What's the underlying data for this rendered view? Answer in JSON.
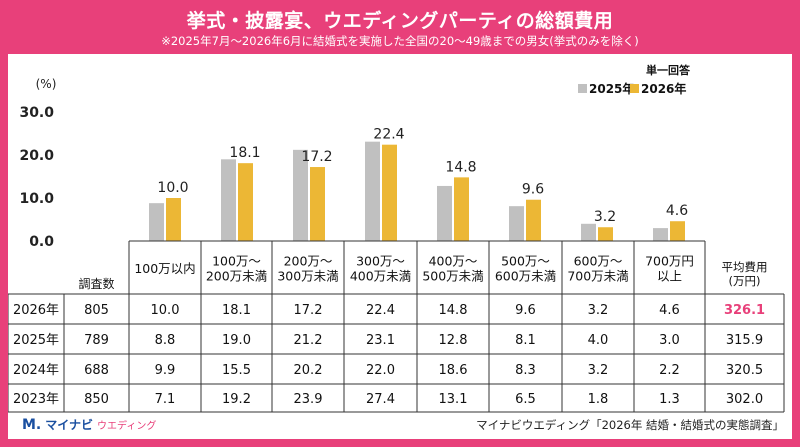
{
  "header": {
    "title": "挙式・披露宴、ウエディングパーティの総額費用",
    "subtitle": "※2025年7月～2026年6月に結婚式を実施した全国の20～49歳までの男女(挙式のみを除く)"
  },
  "colors": {
    "series_2025": "#c0c0c0",
    "series_2026": "#ecb735",
    "highlight": "#e8407a",
    "accent": "#e8407a"
  },
  "chart_data": {
    "type": "bar",
    "yunit": "(%)",
    "ylim": [
      0,
      30
    ],
    "yticks": [
      "0.0",
      "10.0",
      "20.0",
      "30.0"
    ],
    "answer_type": "単一回答",
    "categories": [
      "100万以内",
      "100万～\n200万未満",
      "200万～\n300万未満",
      "300万～\n400万未満",
      "400万～\n500万未満",
      "500万～\n600万未満",
      "600万～\n700万未満",
      "700万円\n以上"
    ],
    "series": [
      {
        "name": "2025年",
        "values": [
          8.8,
          19.0,
          21.2,
          23.1,
          12.8,
          8.1,
          4.0,
          3.0
        ]
      },
      {
        "name": "2026年",
        "values": [
          10.0,
          18.1,
          17.2,
          22.4,
          14.8,
          9.6,
          3.2,
          4.6
        ]
      }
    ],
    "data_labels": [
      "10.0",
      "18.1",
      "17.2",
      "22.4",
      "14.8",
      "9.6",
      "3.2",
      "4.6"
    ],
    "grid": false,
    "legend": "top-right"
  },
  "table": {
    "count_header": "調査数",
    "avg_header": "平均費用\n(万円)",
    "rows": [
      {
        "year": "2026年",
        "count": "805",
        "values": [
          "10.0",
          "18.1",
          "17.2",
          "22.4",
          "14.8",
          "9.6",
          "3.2",
          "4.6"
        ],
        "avg": "326.1",
        "highlight": true
      },
      {
        "year": "2025年",
        "count": "789",
        "values": [
          "8.8",
          "19.0",
          "21.2",
          "23.1",
          "12.8",
          "8.1",
          "4.0",
          "3.0"
        ],
        "avg": "315.9",
        "highlight": false
      },
      {
        "year": "2024年",
        "count": "688",
        "values": [
          "9.9",
          "15.5",
          "20.2",
          "22.0",
          "18.6",
          "8.3",
          "3.2",
          "2.2"
        ],
        "avg": "320.5",
        "highlight": false
      },
      {
        "year": "2023年",
        "count": "850",
        "values": [
          "7.1",
          "19.2",
          "23.9",
          "27.4",
          "13.1",
          "6.5",
          "1.8",
          "1.3"
        ],
        "avg": "302.0",
        "highlight": false
      }
    ]
  },
  "footer": {
    "brand_mark": "M.",
    "brand_name": "マイナビ",
    "brand_sub": "ウエディング",
    "source": "マイナビウエディング「2026年 結婚・結婚式の実態調査」"
  }
}
